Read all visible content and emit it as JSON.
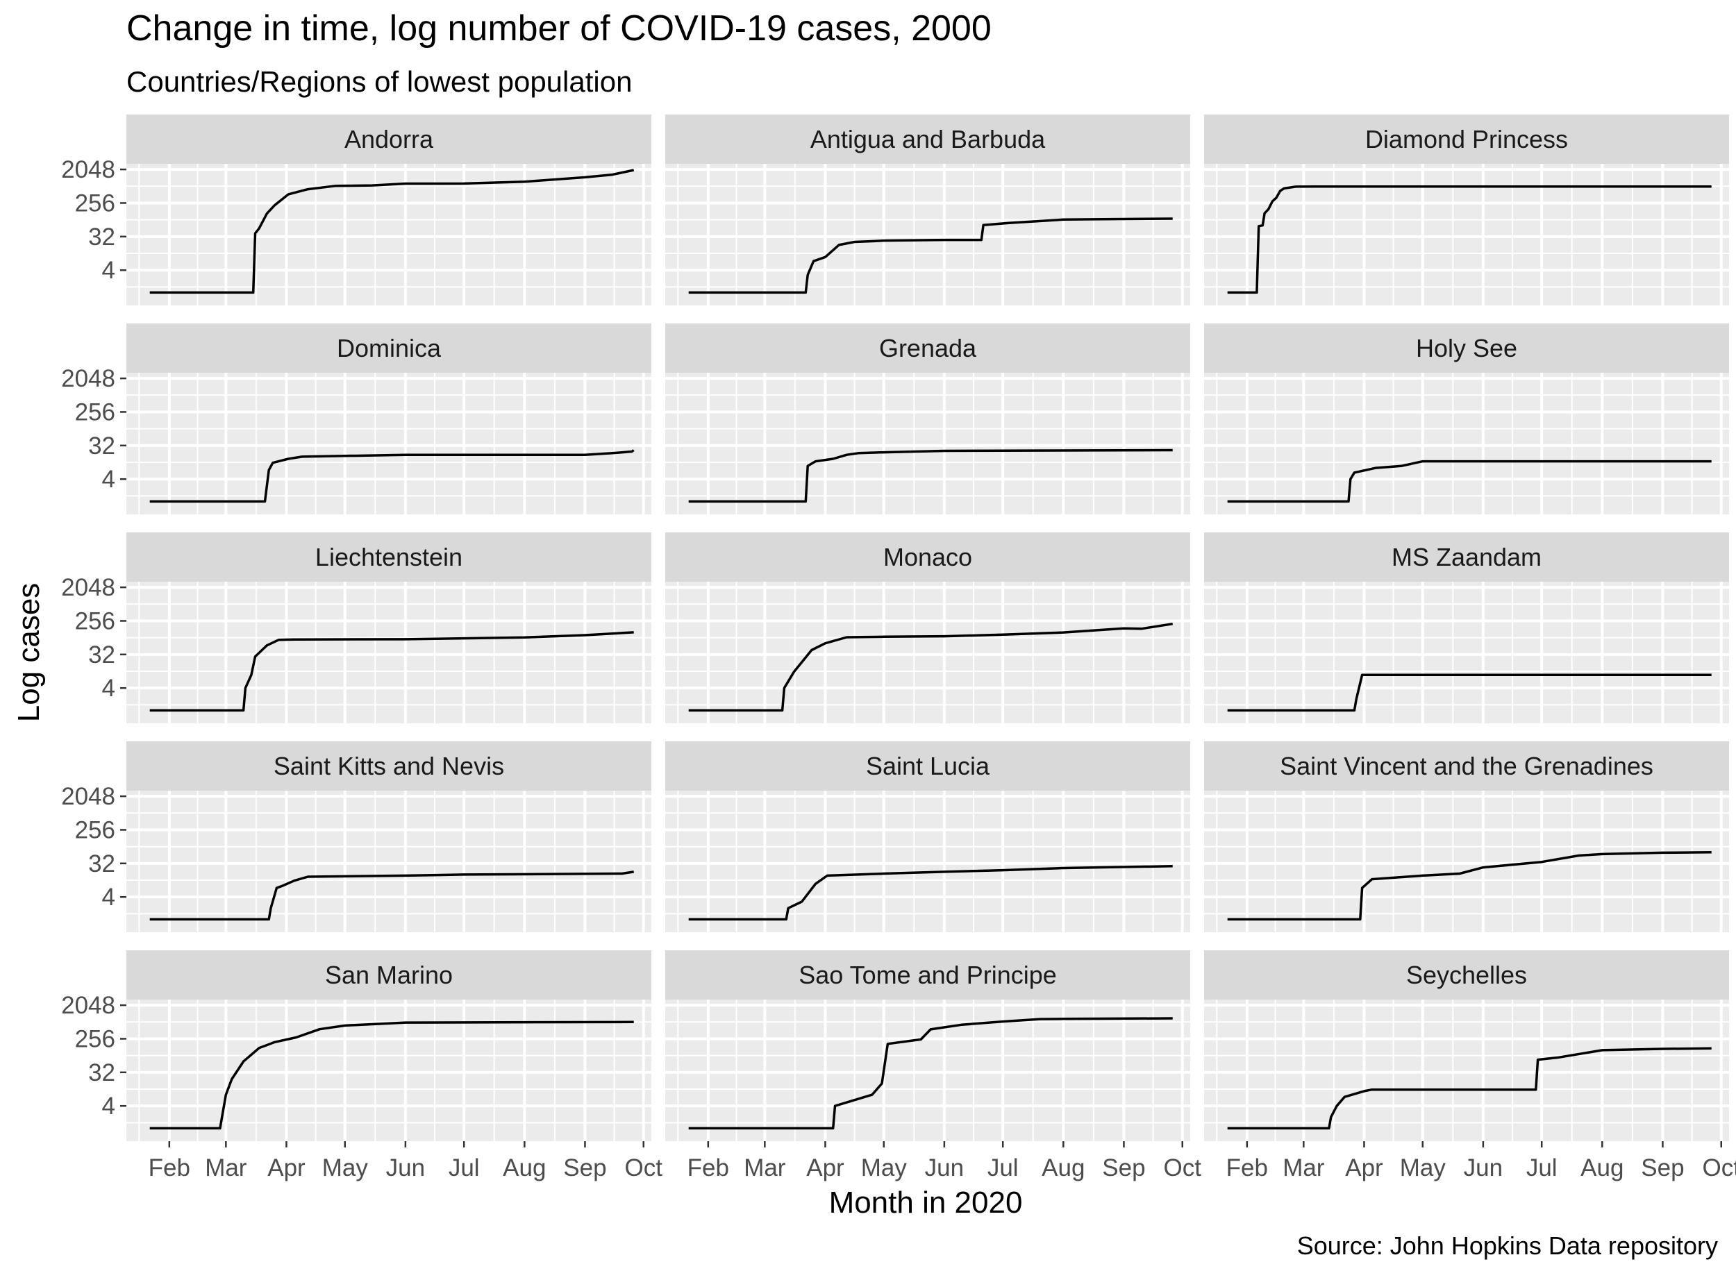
{
  "chart_data": {
    "type": "line",
    "title": "Change in time, log number of COVID-19 cases, 2000",
    "subtitle": "Countries/Regions of lowest population",
    "xlabel": "Month in 2020",
    "ylabel": "Log cases",
    "caption": "Source: John Hopkins Data repository",
    "y_scale": "log2",
    "y_ticks": [
      4,
      32,
      256,
      2048
    ],
    "y_tick_labels": [
      "4",
      "32",
      "256",
      "2048"
    ],
    "x_ticks": [
      "2020-02-01",
      "2020-03-01",
      "2020-04-01",
      "2020-05-01",
      "2020-06-01",
      "2020-07-01",
      "2020-08-01",
      "2020-09-01",
      "2020-10-01"
    ],
    "x_tick_labels": [
      "Feb",
      "Mar",
      "Apr",
      "May",
      "Jun",
      "Jul",
      "Aug",
      "Sep",
      "Oct"
    ],
    "xlim": [
      "2020-01-10",
      "2020-10-05"
    ],
    "ylim": [
      0.45,
      2900
    ],
    "grid": true,
    "colors": {
      "panel_bg": "#ebebeb",
      "strip_bg": "#d9d9d9",
      "grid": "#ffffff",
      "line": "#000000",
      "text": "#000000",
      "axis_text": "#4d4d4d"
    },
    "panels": [
      {
        "name": "Andorra",
        "series": [
          [
            "2020-01-22",
            1
          ],
          [
            "2020-03-02",
            1
          ],
          [
            "2020-03-03",
            1
          ],
          [
            "2020-03-15",
            1
          ],
          [
            "2020-03-16",
            39
          ],
          [
            "2020-03-18",
            53
          ],
          [
            "2020-03-22",
            133
          ],
          [
            "2020-03-26",
            224
          ],
          [
            "2020-04-02",
            439
          ],
          [
            "2020-04-12",
            601
          ],
          [
            "2020-04-26",
            738
          ],
          [
            "2020-05-15",
            761
          ],
          [
            "2020-06-01",
            852
          ],
          [
            "2020-07-01",
            855
          ],
          [
            "2020-08-01",
            955
          ],
          [
            "2020-09-01",
            1261
          ],
          [
            "2020-09-15",
            1483
          ],
          [
            "2020-09-26",
            1966
          ]
        ]
      },
      {
        "name": "Antigua and Barbuda",
        "series": [
          [
            "2020-01-22",
            1
          ],
          [
            "2020-03-13",
            1
          ],
          [
            "2020-03-14",
            1
          ],
          [
            "2020-03-22",
            1
          ],
          [
            "2020-03-23",
            3
          ],
          [
            "2020-03-26",
            7
          ],
          [
            "2020-04-01",
            9
          ],
          [
            "2020-04-08",
            19
          ],
          [
            "2020-04-16",
            23
          ],
          [
            "2020-04-25",
            24
          ],
          [
            "2020-05-01",
            25
          ],
          [
            "2020-06-01",
            26
          ],
          [
            "2020-06-20",
            26
          ],
          [
            "2020-06-21",
            65
          ],
          [
            "2020-07-04",
            74
          ],
          [
            "2020-08-01",
            92
          ],
          [
            "2020-09-01",
            95
          ],
          [
            "2020-09-26",
            97
          ]
        ]
      },
      {
        "name": "Diamond Princess",
        "series": [
          [
            "2020-01-22",
            1
          ],
          [
            "2020-02-06",
            1
          ],
          [
            "2020-02-07",
            61
          ],
          [
            "2020-02-09",
            64
          ],
          [
            "2020-02-10",
            135
          ],
          [
            "2020-02-12",
            175
          ],
          [
            "2020-02-14",
            285
          ],
          [
            "2020-02-16",
            355
          ],
          [
            "2020-02-18",
            542
          ],
          [
            "2020-02-20",
            634
          ],
          [
            "2020-02-26",
            705
          ],
          [
            "2020-03-07",
            712
          ],
          [
            "2020-09-26",
            712
          ]
        ]
      },
      {
        "name": "Dominica",
        "series": [
          [
            "2020-01-22",
            1
          ],
          [
            "2020-03-20",
            1
          ],
          [
            "2020-03-21",
            1
          ],
          [
            "2020-03-23",
            7
          ],
          [
            "2020-03-25",
            11
          ],
          [
            "2020-04-02",
            14
          ],
          [
            "2020-04-09",
            16
          ],
          [
            "2020-06-01",
            18
          ],
          [
            "2020-09-01",
            18
          ],
          [
            "2020-09-15",
            20
          ],
          [
            "2020-09-25",
            22
          ],
          [
            "2020-09-26",
            24
          ]
        ]
      },
      {
        "name": "Grenada",
        "series": [
          [
            "2020-01-22",
            1
          ],
          [
            "2020-03-20",
            1
          ],
          [
            "2020-03-21",
            1
          ],
          [
            "2020-03-22",
            1
          ],
          [
            "2020-03-23",
            9
          ],
          [
            "2020-03-27",
            12
          ],
          [
            "2020-04-05",
            14
          ],
          [
            "2020-04-12",
            18
          ],
          [
            "2020-04-18",
            20
          ],
          [
            "2020-05-01",
            21
          ],
          [
            "2020-06-01",
            23
          ],
          [
            "2020-09-26",
            24
          ]
        ]
      },
      {
        "name": "Holy See",
        "series": [
          [
            "2020-01-22",
            1
          ],
          [
            "2020-03-05",
            1
          ],
          [
            "2020-03-06",
            1
          ],
          [
            "2020-03-24",
            1
          ],
          [
            "2020-03-25",
            4
          ],
          [
            "2020-03-27",
            6
          ],
          [
            "2020-04-02",
            7
          ],
          [
            "2020-04-07",
            8
          ],
          [
            "2020-04-20",
            9
          ],
          [
            "2020-05-01",
            12
          ],
          [
            "2020-06-10",
            12
          ],
          [
            "2020-09-26",
            12
          ]
        ]
      },
      {
        "name": "Liechtenstein",
        "series": [
          [
            "2020-01-22",
            1
          ],
          [
            "2020-03-03",
            1
          ],
          [
            "2020-03-04",
            1
          ],
          [
            "2020-03-10",
            1
          ],
          [
            "2020-03-11",
            4
          ],
          [
            "2020-03-14",
            9
          ],
          [
            "2020-03-16",
            28
          ],
          [
            "2020-03-22",
            56
          ],
          [
            "2020-03-28",
            79
          ],
          [
            "2020-04-05",
            81
          ],
          [
            "2020-06-01",
            82
          ],
          [
            "2020-08-01",
            92
          ],
          [
            "2020-09-01",
            106
          ],
          [
            "2020-09-26",
            126
          ]
        ]
      },
      {
        "name": "Monaco",
        "series": [
          [
            "2020-01-22",
            1
          ],
          [
            "2020-02-28",
            1
          ],
          [
            "2020-02-29",
            1
          ],
          [
            "2020-03-10",
            1
          ],
          [
            "2020-03-11",
            4
          ],
          [
            "2020-03-16",
            11
          ],
          [
            "2020-03-21",
            23
          ],
          [
            "2020-03-25",
            42
          ],
          [
            "2020-04-01",
            64
          ],
          [
            "2020-04-12",
            93
          ],
          [
            "2020-05-01",
            96
          ],
          [
            "2020-06-01",
            99
          ],
          [
            "2020-07-01",
            109
          ],
          [
            "2020-08-01",
            125
          ],
          [
            "2020-09-01",
            161
          ],
          [
            "2020-09-10",
            157
          ],
          [
            "2020-09-26",
            213
          ]
        ]
      },
      {
        "name": "MS Zaandam",
        "series": [
          [
            "2020-01-22",
            1
          ],
          [
            "2020-03-27",
            1
          ],
          [
            "2020-03-28",
            2
          ],
          [
            "2020-03-31",
            9
          ],
          [
            "2020-09-26",
            9
          ]
        ]
      },
      {
        "name": "Saint Kitts and Nevis",
        "series": [
          [
            "2020-01-22",
            1
          ],
          [
            "2020-03-23",
            1
          ],
          [
            "2020-03-24",
            2
          ],
          [
            "2020-03-27",
            7
          ],
          [
            "2020-03-30",
            8
          ],
          [
            "2020-04-05",
            11
          ],
          [
            "2020-04-12",
            14
          ],
          [
            "2020-06-01",
            15
          ],
          [
            "2020-07-01",
            16
          ],
          [
            "2020-09-20",
            17
          ],
          [
            "2020-09-26",
            19
          ]
        ]
      },
      {
        "name": "Saint Lucia",
        "series": [
          [
            "2020-01-22",
            1
          ],
          [
            "2020-03-12",
            1
          ],
          [
            "2020-03-13",
            2
          ],
          [
            "2020-03-20",
            3
          ],
          [
            "2020-03-27",
            9
          ],
          [
            "2020-04-02",
            15
          ],
          [
            "2020-05-01",
            17
          ],
          [
            "2020-06-01",
            19
          ],
          [
            "2020-07-01",
            21
          ],
          [
            "2020-08-01",
            24
          ],
          [
            "2020-09-26",
            27
          ]
        ]
      },
      {
        "name": "Saint Vincent and the Grenadines",
        "series": [
          [
            "2020-01-22",
            1
          ],
          [
            "2020-03-10",
            1
          ],
          [
            "2020-03-11",
            1
          ],
          [
            "2020-03-30",
            1
          ],
          [
            "2020-03-31",
            7
          ],
          [
            "2020-04-05",
            12
          ],
          [
            "2020-05-01",
            15
          ],
          [
            "2020-05-20",
            17
          ],
          [
            "2020-06-01",
            25
          ],
          [
            "2020-07-01",
            35
          ],
          [
            "2020-07-20",
            52
          ],
          [
            "2020-08-01",
            57
          ],
          [
            "2020-09-01",
            62
          ],
          [
            "2020-09-26",
            64
          ]
        ]
      },
      {
        "name": "San Marino",
        "series": [
          [
            "2020-01-22",
            1
          ],
          [
            "2020-02-26",
            1
          ],
          [
            "2020-02-27",
            1
          ],
          [
            "2020-03-01",
            8
          ],
          [
            "2020-03-04",
            21
          ],
          [
            "2020-03-10",
            63
          ],
          [
            "2020-03-18",
            144
          ],
          [
            "2020-03-26",
            208
          ],
          [
            "2020-04-06",
            279
          ],
          [
            "2020-04-18",
            462
          ],
          [
            "2020-05-01",
            580
          ],
          [
            "2020-06-01",
            698
          ],
          [
            "2020-09-26",
            723
          ]
        ]
      },
      {
        "name": "Sao Tome and Principe",
        "series": [
          [
            "2020-01-22",
            1
          ],
          [
            "2020-04-05",
            1
          ],
          [
            "2020-04-06",
            4
          ],
          [
            "2020-04-25",
            8
          ],
          [
            "2020-04-30",
            16
          ],
          [
            "2020-05-03",
            187
          ],
          [
            "2020-05-20",
            246
          ],
          [
            "2020-05-25",
            458
          ],
          [
            "2020-06-10",
            611
          ],
          [
            "2020-07-01",
            746
          ],
          [
            "2020-07-20",
            867
          ],
          [
            "2020-08-01",
            878
          ],
          [
            "2020-09-26",
            908
          ]
        ]
      },
      {
        "name": "Seychelles",
        "series": [
          [
            "2020-01-22",
            1
          ],
          [
            "2020-03-14",
            1
          ],
          [
            "2020-03-15",
            2
          ],
          [
            "2020-03-18",
            4
          ],
          [
            "2020-03-22",
            7
          ],
          [
            "2020-04-01",
            10
          ],
          [
            "2020-04-05",
            11
          ],
          [
            "2020-06-01",
            11
          ],
          [
            "2020-06-28",
            11
          ],
          [
            "2020-06-29",
            70
          ],
          [
            "2020-07-10",
            81
          ],
          [
            "2020-08-01",
            126
          ],
          [
            "2020-09-01",
            137
          ],
          [
            "2020-09-26",
            141
          ]
        ]
      }
    ]
  }
}
